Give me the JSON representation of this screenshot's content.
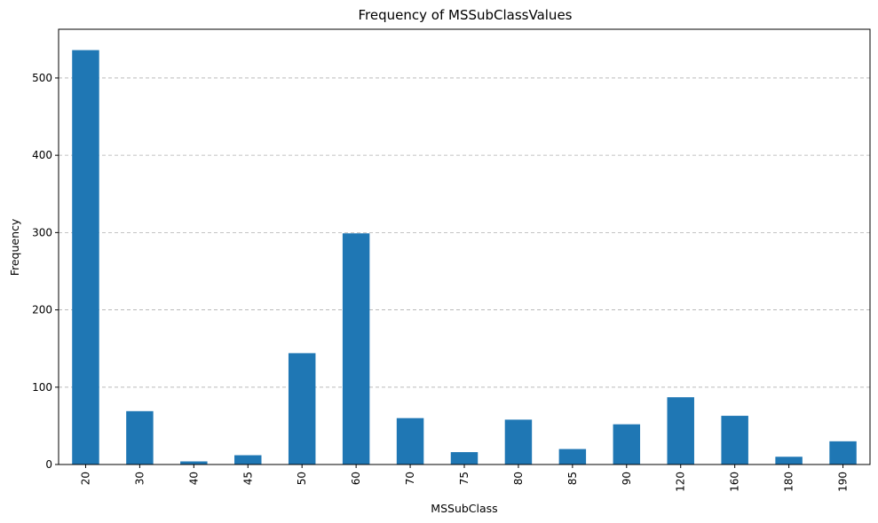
{
  "chart_data": {
    "type": "bar",
    "title": "Frequency of MSSubClassValues",
    "xlabel": "MSSubClass",
    "ylabel": "Frequency",
    "categories": [
      "20",
      "30",
      "40",
      "45",
      "50",
      "60",
      "70",
      "75",
      "80",
      "85",
      "90",
      "120",
      "160",
      "180",
      "190"
    ],
    "values": [
      536,
      69,
      4,
      12,
      144,
      299,
      60,
      16,
      58,
      20,
      52,
      87,
      63,
      10,
      30
    ],
    "ylim": [
      0,
      563
    ],
    "yticks": [
      0,
      100,
      200,
      300,
      400,
      500
    ],
    "ytick_labels": [
      "0",
      "100",
      "200",
      "300",
      "400",
      "500"
    ],
    "grid": "y-dashed",
    "color": "#1f77b4",
    "x_tick_rotation": "vertical"
  }
}
